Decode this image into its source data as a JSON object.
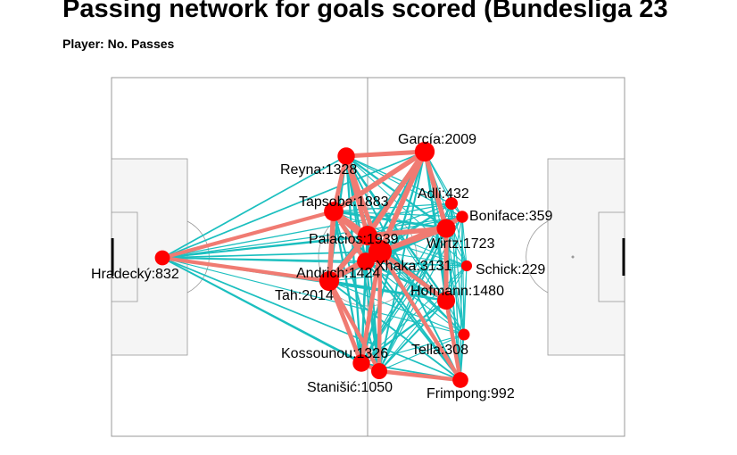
{
  "header": {
    "title": "Passing network for goals scored (Bundesliga 23",
    "subtitle": "Player: No. Passes"
  },
  "colors": {
    "pitch_line": "#999999",
    "box_fill": "#f5f5f5",
    "edge_strong": "#f07b72",
    "edge_weak": "#1bbfbf",
    "node": "#ff0000"
  },
  "chart_data": {
    "type": "network",
    "title": "Passing network for goals scored (Bundesliga 23",
    "subtitle": "Player: No. Passes",
    "players": [
      {
        "name": "García",
        "passes": 2009,
        "label": "García:2009"
      },
      {
        "name": "Reyna",
        "passes": 1328,
        "label": "Reyna:1328"
      },
      {
        "name": "Adli",
        "passes": 432,
        "label": "Adli:432"
      },
      {
        "name": "Tapsoba",
        "passes": 1883,
        "label": "Tapsoba:1883"
      },
      {
        "name": "Boniface",
        "passes": 359,
        "label": "Boniface:359"
      },
      {
        "name": "Palacios",
        "passes": 1939,
        "label": "Palacios:1939"
      },
      {
        "name": "Wirtz",
        "passes": 1723,
        "label": "Wirtz:1723"
      },
      {
        "name": "Hradecký",
        "passes": 832,
        "label": "Hradecký:832"
      },
      {
        "name": "Xhaka",
        "passes": 3131,
        "label": "Xhaka:3131"
      },
      {
        "name": "Schick",
        "passes": 229,
        "label": "Schick:229"
      },
      {
        "name": "Andrich",
        "passes": 1424,
        "label": "Andrich:1424"
      },
      {
        "name": "Tah",
        "passes": 2014,
        "label": "Tah:2014"
      },
      {
        "name": "Hofmann",
        "passes": 1480,
        "label": "Hofmann:1480"
      },
      {
        "name": "Tella",
        "passes": 308,
        "label": "Tella:308"
      },
      {
        "name": "Kossounou",
        "passes": 1326,
        "label": "Kossounou:1326"
      },
      {
        "name": "Stanišić",
        "passes": 1050,
        "label": "Stanišić:1050"
      },
      {
        "name": "Frimpong",
        "passes": 992,
        "label": "Frimpong:992"
      }
    ]
  }
}
